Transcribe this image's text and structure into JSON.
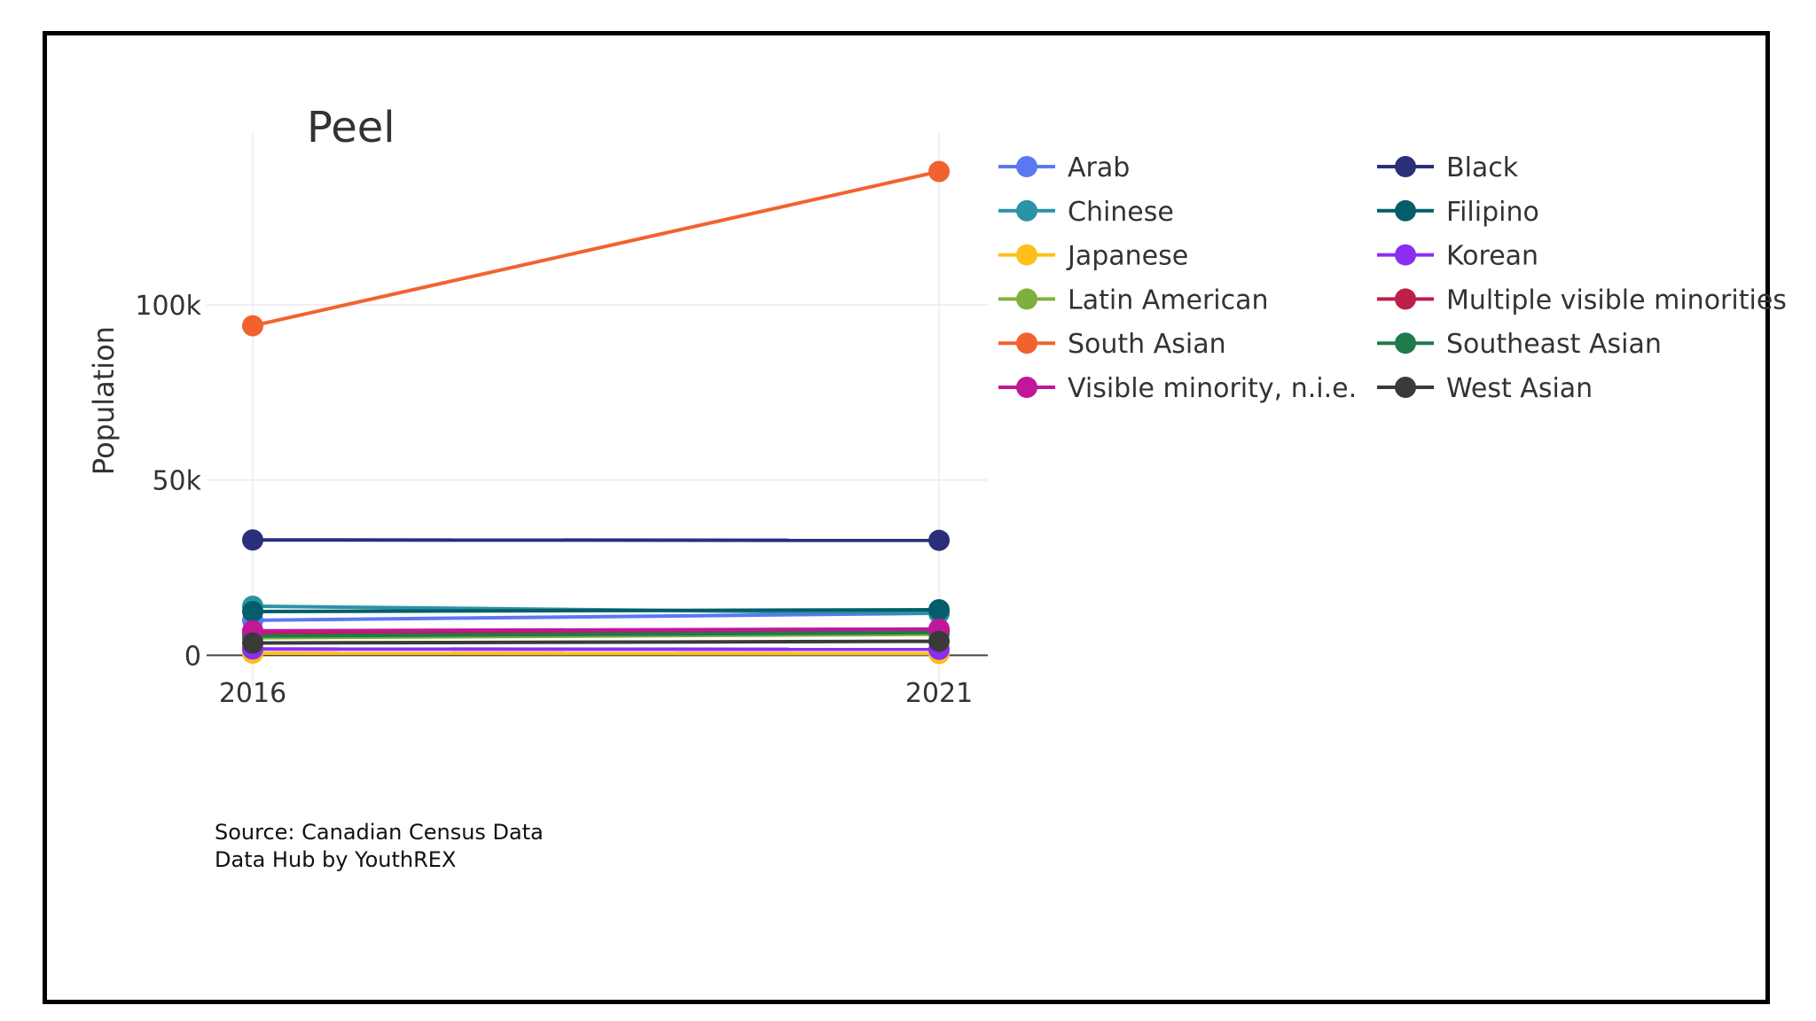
{
  "chart_data": {
    "type": "line",
    "title": "Peel",
    "xlabel": "",
    "ylabel": "Population",
    "x": [
      "2016",
      "2021"
    ],
    "ylim": [
      -9000,
      149000
    ],
    "yticks": [
      0,
      50000,
      100000
    ],
    "ytick_labels": [
      "0",
      "50k",
      "100k"
    ],
    "grid": true,
    "legend_position": "right, two columns",
    "series": [
      {
        "name": "Arab",
        "color": "#5B78F2",
        "values": [
          10000,
          12000
        ]
      },
      {
        "name": "Black",
        "color": "#2A2F7A",
        "values": [
          32900,
          32800
        ]
      },
      {
        "name": "Chinese",
        "color": "#2A93A5",
        "values": [
          14000,
          12000
        ]
      },
      {
        "name": "Filipino",
        "color": "#035E6A",
        "values": [
          12500,
          13000
        ]
      },
      {
        "name": "Japanese",
        "color": "#FFBE1A",
        "values": [
          600,
          500
        ]
      },
      {
        "name": "Korean",
        "color": "#8B2EF0",
        "values": [
          1800,
          1700
        ]
      },
      {
        "name": "Latin American",
        "color": "#7FB03D",
        "values": [
          5000,
          6000
        ]
      },
      {
        "name": "Multiple visible minorities",
        "color": "#BE1E48",
        "values": [
          6000,
          7000
        ]
      },
      {
        "name": "South Asian",
        "color": "#F2622E",
        "values": [
          94000,
          138000
        ]
      },
      {
        "name": "Southeast Asian",
        "color": "#1E7A4C",
        "values": [
          5500,
          6500
        ]
      },
      {
        "name": "Visible minority, n.i.e.",
        "color": "#C0179B",
        "values": [
          7000,
          7500
        ]
      },
      {
        "name": "West Asian",
        "color": "#3A3A3A",
        "values": [
          3500,
          4000
        ]
      }
    ]
  },
  "source": {
    "line1": "Source: Canadian Census Data",
    "line2": "Data Hub by YouthREX"
  }
}
